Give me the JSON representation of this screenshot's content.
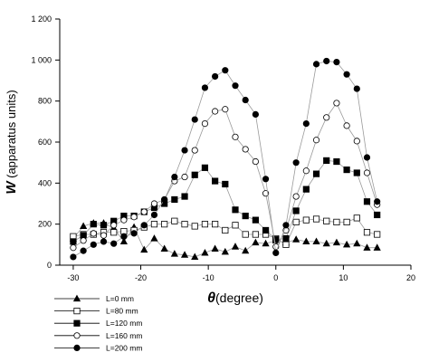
{
  "chart_data": {
    "type": "scatter",
    "title": "",
    "xlabel_symbol": "θ",
    "xlabel_unit": "(degree)",
    "ylabel_symbol": "W",
    "ylabel_unit": " (apparatus units)",
    "xlim": [
      -32,
      20
    ],
    "ylim": [
      0,
      1200
    ],
    "xticks": [
      -30,
      -20,
      -10,
      0,
      10,
      20
    ],
    "xtick_labels": [
      "-30",
      "-20",
      "-10",
      "0",
      "10",
      "20"
    ],
    "yticks": [
      0,
      200,
      400,
      600,
      800,
      1000,
      1200
    ],
    "ytick_labels": [
      "0",
      "200",
      "400",
      "600",
      "800",
      "1 000",
      "1 200"
    ],
    "grid": false,
    "legend_position": "bottom-left, below plot",
    "x": [
      -30,
      -28.5,
      -27,
      -25.5,
      -24,
      -22.5,
      -21,
      -19.5,
      -18,
      -16.5,
      -15,
      -13.5,
      -12,
      -10.5,
      -9,
      -7.5,
      -6,
      -4.5,
      -3,
      -1.5,
      0,
      1.5,
      3,
      4.5,
      6,
      7.5,
      9,
      10.5,
      12,
      13.5,
      15
    ],
    "series": [
      {
        "name": "L=0 mm",
        "marker": "triangle",
        "color": "#000000",
        "values": [
          130,
          190,
          205,
          205,
          180,
          115,
          185,
          75,
          130,
          80,
          55,
          50,
          40,
          60,
          80,
          65,
          90,
          70,
          110,
          105,
          120,
          110,
          125,
          115,
          115,
          105,
          110,
          100,
          105,
          85,
          85
        ]
      },
      {
        "name": "L=80 mm",
        "marker": "square-open",
        "color": "#000000",
        "values": [
          140,
          150,
          150,
          160,
          160,
          165,
          170,
          185,
          200,
          200,
          215,
          200,
          190,
          200,
          200,
          170,
          195,
          150,
          150,
          150,
          130,
          100,
          210,
          220,
          225,
          215,
          210,
          210,
          230,
          160,
          150
        ]
      },
      {
        "name": "L=120 mm",
        "marker": "square-filled",
        "color": "#000000",
        "values": [
          115,
          145,
          200,
          195,
          215,
          240,
          240,
          260,
          280,
          300,
          320,
          335,
          440,
          475,
          410,
          395,
          270,
          240,
          220,
          170,
          125,
          130,
          265,
          370,
          445,
          510,
          505,
          465,
          450,
          310,
          245
        ]
      },
      {
        "name": "L=160 mm",
        "marker": "circle-open",
        "color": "#000000",
        "values": [
          85,
          120,
          155,
          145,
          195,
          220,
          235,
          260,
          300,
          320,
          410,
          430,
          560,
          690,
          750,
          760,
          625,
          565,
          505,
          350,
          90,
          170,
          335,
          460,
          610,
          720,
          790,
          680,
          605,
          450,
          295
        ]
      },
      {
        "name": "L=200 mm",
        "marker": "circle-filled",
        "color": "#000000",
        "values": [
          40,
          70,
          100,
          115,
          105,
          140,
          155,
          195,
          245,
          320,
          430,
          560,
          710,
          865,
          920,
          950,
          875,
          805,
          735,
          420,
          60,
          195,
          500,
          690,
          980,
          995,
          990,
          930,
          860,
          525,
          310
        ]
      }
    ]
  }
}
